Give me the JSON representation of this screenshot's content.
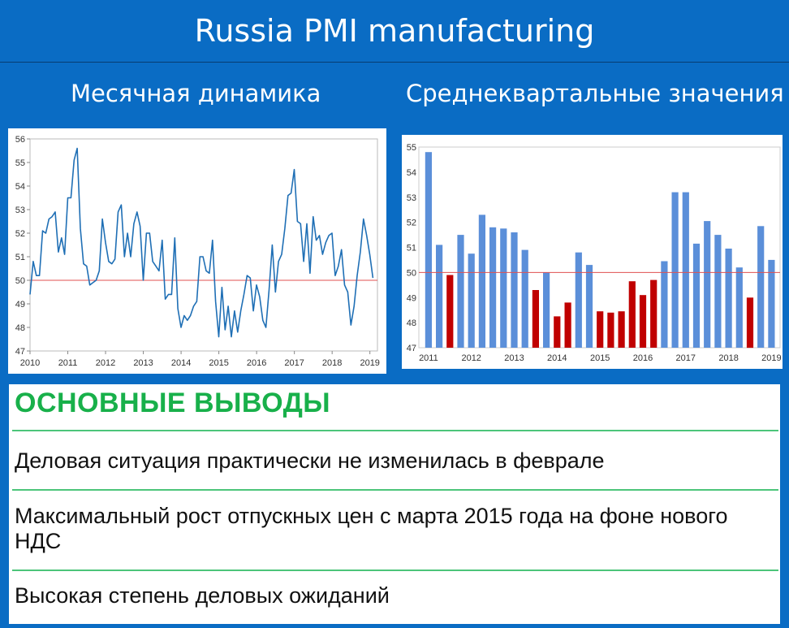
{
  "header": {
    "title": "Russia PMI manufacturing"
  },
  "subtitles": {
    "left": "Месячная динамика",
    "right": "Среднеквартальные значения"
  },
  "chart_data": [
    {
      "type": "line",
      "x_start": 2010.0,
      "x_step": 0.0833,
      "values": [
        49.4,
        50.8,
        50.2,
        50.2,
        52.1,
        52.0,
        52.6,
        52.7,
        52.9,
        51.2,
        51.8,
        51.1,
        53.5,
        53.5,
        55.1,
        55.6,
        52.2,
        50.7,
        50.6,
        49.8,
        49.9,
        50.0,
        50.4,
        52.6,
        51.6,
        50.8,
        50.7,
        50.9,
        52.9,
        53.2,
        51.0,
        52.0,
        51.0,
        52.4,
        52.9,
        52.3,
        50.0,
        52.0,
        52.0,
        50.8,
        50.6,
        50.4,
        51.7,
        49.2,
        49.4,
        49.4,
        51.8,
        48.8,
        48.0,
        48.5,
        48.3,
        48.5,
        48.9,
        49.1,
        51.0,
        51.0,
        50.4,
        50.3,
        51.7,
        49.1,
        47.6,
        49.7,
        47.9,
        48.9,
        47.6,
        48.7,
        47.8,
        48.7,
        49.4,
        50.2,
        50.1,
        48.7,
        49.8,
        49.3,
        48.3,
        48.0,
        49.6,
        51.5,
        49.5,
        50.8,
        51.1,
        52.2,
        53.6,
        53.7,
        54.7,
        52.5,
        52.4,
        50.8,
        52.4,
        50.3,
        52.7,
        51.7,
        51.9,
        51.1,
        51.6,
        51.9,
        52.0,
        50.2,
        50.6,
        51.3,
        49.8,
        49.5,
        48.1,
        48.9,
        50.2,
        51.2,
        52.6,
        51.9,
        51.1,
        50.1
      ],
      "xlim": [
        2010,
        2019.2
      ],
      "ylim": [
        47,
        56
      ],
      "x_ticks": [
        "2010",
        "2011",
        "2012",
        "2013",
        "2014",
        "2015",
        "2016",
        "2017",
        "2018",
        "2019"
      ],
      "y_ticks": [
        "47",
        "48",
        "49",
        "50",
        "51",
        "52",
        "53",
        "54",
        "55",
        "56"
      ],
      "reference_line": 50,
      "colors": {
        "line": "#1f6fb5",
        "reference": "#e05050"
      }
    },
    {
      "type": "bar",
      "values": [
        54.8,
        51.1,
        49.9,
        51.5,
        50.75,
        52.3,
        51.8,
        51.75,
        51.6,
        50.9,
        49.3,
        50.0,
        48.25,
        48.8,
        50.8,
        50.3,
        48.45,
        48.4,
        48.45,
        49.65,
        49.1,
        49.7,
        50.45,
        53.2,
        53.2,
        51.15,
        52.05,
        51.5,
        50.95,
        50.2,
        49.0,
        51.85,
        50.5
      ],
      "x_ticks": [
        "2011",
        "2012",
        "2013",
        "2014",
        "2015",
        "2016",
        "2017",
        "2018",
        "2019"
      ],
      "y_ticks": [
        "47",
        "48",
        "49",
        "50",
        "51",
        "52",
        "53",
        "54",
        "55"
      ],
      "ylim": [
        47,
        55
      ],
      "reference_line": 50,
      "colors": {
        "above": "#5b8fd9",
        "below": "#c00000",
        "reference": "#e05050"
      }
    }
  ],
  "conclusions": {
    "heading": "ОСНОВНЫЕ ВЫВОДЫ",
    "items": [
      "Деловая ситуация практически не изменилась в феврале",
      "Максимальный рост отпускных цен с марта 2015 года на фоне нового НДС",
      "Высокая степень деловых ожиданий"
    ]
  }
}
